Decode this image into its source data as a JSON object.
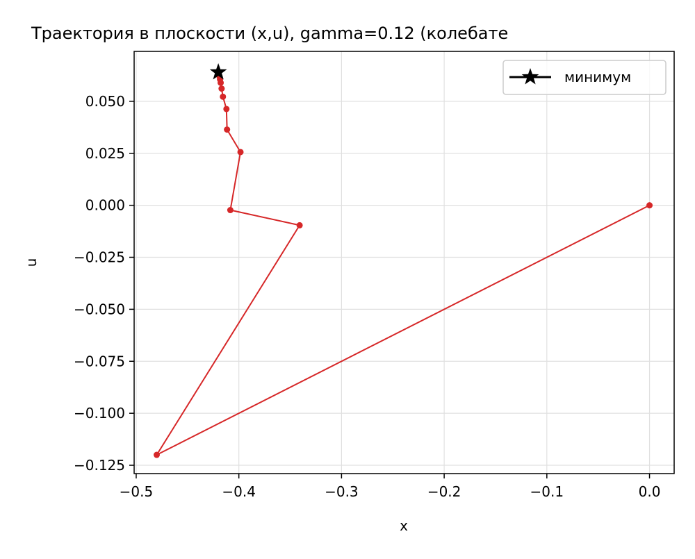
{
  "chart_data": {
    "type": "line",
    "title": "Траектория в плоскости (x,u), gamma=0.12 (колебате",
    "xlabel": "x",
    "ylabel": "u",
    "xlim": [
      -0.502,
      0.024
    ],
    "ylim": [
      -0.129,
      0.074
    ],
    "xticks": [
      {
        "value": -0.5,
        "label": "−0.5"
      },
      {
        "value": -0.4,
        "label": "−0.4"
      },
      {
        "value": -0.3,
        "label": "−0.3"
      },
      {
        "value": -0.2,
        "label": "−0.2"
      },
      {
        "value": -0.1,
        "label": "−0.1"
      },
      {
        "value": 0.0,
        "label": "0.0"
      }
    ],
    "yticks": [
      {
        "value": 0.05,
        "label": "0.050"
      },
      {
        "value": 0.025,
        "label": "0.025"
      },
      {
        "value": 0.0,
        "label": "0.000"
      },
      {
        "value": -0.025,
        "label": "−0.025"
      },
      {
        "value": -0.05,
        "label": "−0.050"
      },
      {
        "value": -0.075,
        "label": "−0.075"
      },
      {
        "value": -0.1,
        "label": "−0.100"
      },
      {
        "value": -0.125,
        "label": "−0.125"
      }
    ],
    "grid": true,
    "legend_position": "upper right",
    "series": [
      {
        "color": "#d62728",
        "points": [
          {
            "x": 0.0,
            "y": 0.0
          },
          {
            "x": -0.48,
            "y": -0.12
          },
          {
            "x": -0.3408,
            "y": -0.0096
          },
          {
            "x": -0.4083,
            "y": -0.0023
          },
          {
            "x": -0.3984,
            "y": 0.0256
          },
          {
            "x": -0.4115,
            "y": 0.0364
          },
          {
            "x": -0.4121,
            "y": 0.0463
          },
          {
            "x": -0.4155,
            "y": 0.0522
          },
          {
            "x": -0.4168,
            "y": 0.0561
          },
          {
            "x": -0.4177,
            "y": 0.0589
          },
          {
            "x": -0.4183,
            "y": 0.0605
          },
          {
            "x": -0.4188,
            "y": 0.0618
          }
        ]
      },
      {
        "name": "минимум",
        "color": "#000000",
        "marker": "star",
        "points": [
          {
            "x": -0.42,
            "y": 0.064
          }
        ]
      }
    ]
  }
}
